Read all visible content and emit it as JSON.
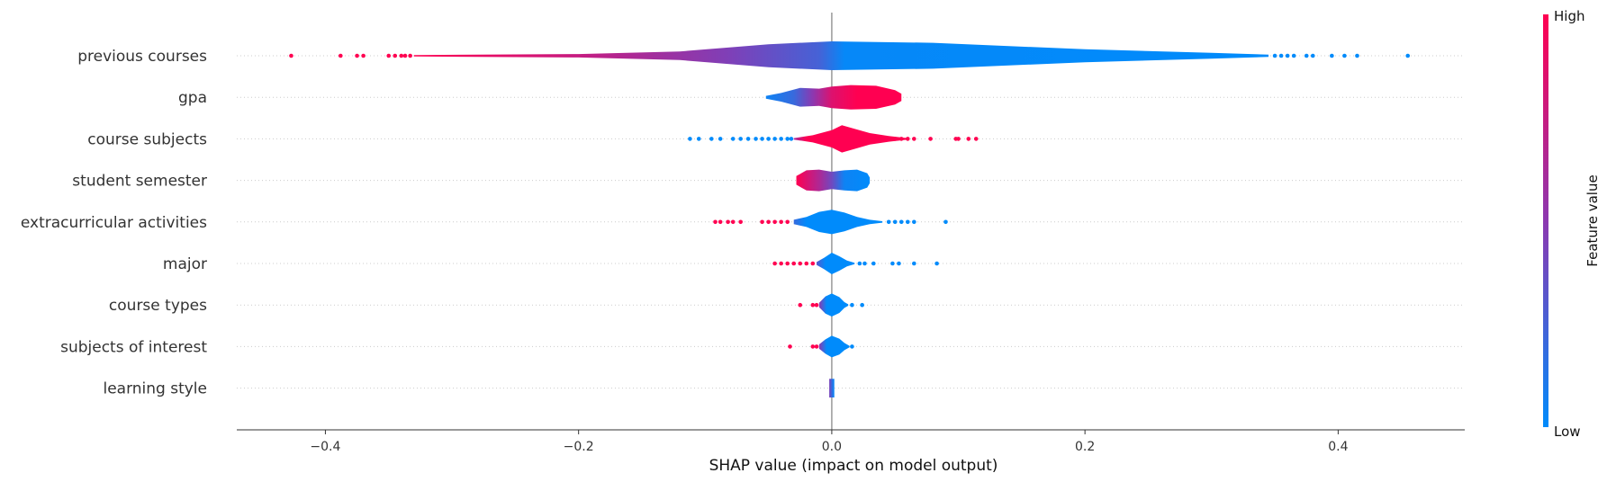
{
  "chart_data": {
    "type": "violin",
    "title": "",
    "xlabel": "SHAP value (impact on model output)",
    "xlim": [
      -0.47,
      0.5
    ],
    "xticks": [
      {
        "value": -0.4,
        "label": "−0.4"
      },
      {
        "value": -0.2,
        "label": "−0.2"
      },
      {
        "value": 0.0,
        "label": "0.0"
      },
      {
        "value": 0.2,
        "label": "0.2"
      },
      {
        "value": 0.4,
        "label": "0.4"
      }
    ],
    "grid": "horizontal dotted",
    "colors": {
      "low": "#008bfb",
      "mid": "#8c38b0",
      "high": "#ff0051"
    },
    "colorbar": {
      "title": "Feature value",
      "high_label": "High",
      "low_label": "Low"
    },
    "features": [
      {
        "name": "previous courses",
        "profile": [
          [
            -0.33,
            0.05
          ],
          [
            -0.2,
            0.12
          ],
          [
            -0.12,
            0.3
          ],
          [
            -0.05,
            0.8
          ],
          [
            0.0,
            1.0
          ],
          [
            0.08,
            0.9
          ],
          [
            0.2,
            0.45
          ],
          [
            0.3,
            0.2
          ],
          [
            0.345,
            0.08
          ]
        ],
        "color_stops": [
          [
            -0.33,
            1.0
          ],
          [
            -0.2,
            0.75
          ],
          [
            -0.08,
            0.45
          ],
          [
            -0.01,
            0.25
          ],
          [
            0.01,
            0.02
          ],
          [
            0.345,
            0.0
          ]
        ],
        "points": [
          {
            "x": -0.427,
            "v": 1.0
          },
          {
            "x": -0.388,
            "v": 1.0
          },
          {
            "x": -0.375,
            "v": 1.0
          },
          {
            "x": -0.37,
            "v": 1.0
          },
          {
            "x": -0.35,
            "v": 1.0
          },
          {
            "x": -0.345,
            "v": 1.0
          },
          {
            "x": -0.34,
            "v": 1.0
          },
          {
            "x": -0.337,
            "v": 1.0
          },
          {
            "x": -0.333,
            "v": 1.0
          },
          {
            "x": 0.35,
            "v": 0.0
          },
          {
            "x": 0.355,
            "v": 0.0
          },
          {
            "x": 0.36,
            "v": 0.0
          },
          {
            "x": 0.365,
            "v": 0.0
          },
          {
            "x": 0.375,
            "v": 0.0
          },
          {
            "x": 0.38,
            "v": 0.0
          },
          {
            "x": 0.395,
            "v": 0.0
          },
          {
            "x": 0.405,
            "v": 0.0
          },
          {
            "x": 0.415,
            "v": 0.0
          },
          {
            "x": 0.455,
            "v": 0.0
          }
        ]
      },
      {
        "name": "gpa",
        "profile": [
          [
            -0.052,
            0.1
          ],
          [
            -0.04,
            0.3
          ],
          [
            -0.025,
            0.65
          ],
          [
            -0.01,
            0.6
          ],
          [
            0.0,
            0.75
          ],
          [
            0.015,
            0.85
          ],
          [
            0.035,
            0.8
          ],
          [
            0.05,
            0.5
          ],
          [
            0.055,
            0.25
          ]
        ],
        "color_stops": [
          [
            -0.052,
            0.05
          ],
          [
            -0.03,
            0.2
          ],
          [
            -0.015,
            0.5
          ],
          [
            0.0,
            0.85
          ],
          [
            0.02,
            1.0
          ],
          [
            0.055,
            1.0
          ]
        ],
        "points": []
      },
      {
        "name": "course subjects",
        "profile": [
          [
            -0.03,
            0.05
          ],
          [
            -0.015,
            0.25
          ],
          [
            0.0,
            0.6
          ],
          [
            0.008,
            0.95
          ],
          [
            0.018,
            0.7
          ],
          [
            0.03,
            0.4
          ],
          [
            0.045,
            0.2
          ],
          [
            0.06,
            0.05
          ]
        ],
        "color_stops": [
          [
            -0.03,
            0.6
          ],
          [
            -0.02,
            1.0
          ],
          [
            0.06,
            1.0
          ]
        ],
        "points": [
          {
            "x": -0.112,
            "v": 0.0
          },
          {
            "x": -0.105,
            "v": 0.0
          },
          {
            "x": -0.095,
            "v": 0.0
          },
          {
            "x": -0.088,
            "v": 0.0
          },
          {
            "x": -0.078,
            "v": 0.0
          },
          {
            "x": -0.072,
            "v": 0.0
          },
          {
            "x": -0.066,
            "v": 0.0
          },
          {
            "x": -0.06,
            "v": 0.0
          },
          {
            "x": -0.055,
            "v": 0.0
          },
          {
            "x": -0.05,
            "v": 0.0
          },
          {
            "x": -0.045,
            "v": 0.0
          },
          {
            "x": -0.04,
            "v": 0.0
          },
          {
            "x": -0.035,
            "v": 0.0
          },
          {
            "x": -0.032,
            "v": 0.0
          },
          {
            "x": 0.05,
            "v": 1.0
          },
          {
            "x": 0.055,
            "v": 1.0
          },
          {
            "x": 0.06,
            "v": 1.0
          },
          {
            "x": 0.065,
            "v": 1.0
          },
          {
            "x": 0.078,
            "v": 1.0
          },
          {
            "x": 0.098,
            "v": 1.0
          },
          {
            "x": 0.1,
            "v": 1.0
          },
          {
            "x": 0.108,
            "v": 1.0
          },
          {
            "x": 0.114,
            "v": 1.0
          }
        ]
      },
      {
        "name": "student semester",
        "profile": [
          [
            -0.028,
            0.3
          ],
          [
            -0.02,
            0.7
          ],
          [
            -0.01,
            0.75
          ],
          [
            0.0,
            0.6
          ],
          [
            0.01,
            0.7
          ],
          [
            0.02,
            0.75
          ],
          [
            0.028,
            0.5
          ],
          [
            0.03,
            0.2
          ]
        ],
        "color_stops": [
          [
            -0.028,
            1.0
          ],
          [
            -0.01,
            0.65
          ],
          [
            0.0,
            0.4
          ],
          [
            0.01,
            0.05
          ],
          [
            0.03,
            0.0
          ]
        ],
        "points": []
      },
      {
        "name": "extracurricular activities",
        "profile": [
          [
            -0.03,
            0.15
          ],
          [
            -0.02,
            0.35
          ],
          [
            -0.01,
            0.7
          ],
          [
            0.0,
            0.85
          ],
          [
            0.01,
            0.65
          ],
          [
            0.02,
            0.35
          ],
          [
            0.03,
            0.15
          ],
          [
            0.04,
            0.05
          ]
        ],
        "color_stops": [
          [
            -0.03,
            0.2
          ],
          [
            -0.02,
            0.0
          ],
          [
            0.04,
            0.0
          ]
        ],
        "points": [
          {
            "x": -0.092,
            "v": 1.0
          },
          {
            "x": -0.088,
            "v": 1.0
          },
          {
            "x": -0.082,
            "v": 1.0
          },
          {
            "x": -0.078,
            "v": 1.0
          },
          {
            "x": -0.072,
            "v": 1.0
          },
          {
            "x": -0.055,
            "v": 1.0
          },
          {
            "x": -0.05,
            "v": 1.0
          },
          {
            "x": -0.045,
            "v": 1.0
          },
          {
            "x": -0.04,
            "v": 1.0
          },
          {
            "x": -0.035,
            "v": 1.0
          },
          {
            "x": 0.045,
            "v": 0.0
          },
          {
            "x": 0.05,
            "v": 0.0
          },
          {
            "x": 0.055,
            "v": 0.0
          },
          {
            "x": 0.06,
            "v": 0.0
          },
          {
            "x": 0.065,
            "v": 0.0
          },
          {
            "x": 0.09,
            "v": 0.0
          }
        ]
      },
      {
        "name": "major",
        "profile": [
          [
            -0.012,
            0.1
          ],
          [
            -0.006,
            0.4
          ],
          [
            0.0,
            0.75
          ],
          [
            0.006,
            0.5
          ],
          [
            0.012,
            0.2
          ],
          [
            0.018,
            0.05
          ]
        ],
        "color_stops": [
          [
            -0.012,
            0.3
          ],
          [
            -0.005,
            0.0
          ],
          [
            0.018,
            0.0
          ]
        ],
        "points": [
          {
            "x": -0.045,
            "v": 1.0
          },
          {
            "x": -0.04,
            "v": 1.0
          },
          {
            "x": -0.035,
            "v": 1.0
          },
          {
            "x": -0.03,
            "v": 1.0
          },
          {
            "x": -0.025,
            "v": 1.0
          },
          {
            "x": -0.02,
            "v": 1.0
          },
          {
            "x": -0.015,
            "v": 1.0
          },
          {
            "x": 0.022,
            "v": 0.0
          },
          {
            "x": 0.026,
            "v": 0.0
          },
          {
            "x": 0.033,
            "v": 0.0
          },
          {
            "x": 0.048,
            "v": 0.0
          },
          {
            "x": 0.053,
            "v": 0.0
          },
          {
            "x": 0.065,
            "v": 0.0
          },
          {
            "x": 0.083,
            "v": 0.0
          }
        ]
      },
      {
        "name": "course types",
        "profile": [
          [
            -0.01,
            0.15
          ],
          [
            -0.005,
            0.6
          ],
          [
            0.0,
            0.8
          ],
          [
            0.006,
            0.55
          ],
          [
            0.01,
            0.2
          ],
          [
            0.013,
            0.05
          ]
        ],
        "color_stops": [
          [
            -0.01,
            0.5
          ],
          [
            -0.004,
            0.0
          ],
          [
            0.013,
            0.0
          ]
        ],
        "points": [
          {
            "x": -0.025,
            "v": 1.0
          },
          {
            "x": -0.015,
            "v": 1.0
          },
          {
            "x": -0.012,
            "v": 1.0
          },
          {
            "x": 0.016,
            "v": 0.0
          },
          {
            "x": 0.024,
            "v": 0.0
          }
        ]
      },
      {
        "name": "subjects of interest",
        "profile": [
          [
            -0.01,
            0.15
          ],
          [
            -0.005,
            0.5
          ],
          [
            0.0,
            0.75
          ],
          [
            0.006,
            0.55
          ],
          [
            0.01,
            0.25
          ],
          [
            0.014,
            0.05
          ]
        ],
        "color_stops": [
          [
            -0.01,
            0.5
          ],
          [
            -0.004,
            0.0
          ],
          [
            0.014,
            0.0
          ]
        ],
        "points": [
          {
            "x": -0.033,
            "v": 1.0
          },
          {
            "x": -0.015,
            "v": 1.0
          },
          {
            "x": -0.012,
            "v": 1.0
          },
          {
            "x": 0.016,
            "v": 0.0
          }
        ]
      },
      {
        "name": "learning style",
        "profile": [
          [
            -0.002,
            0.65
          ],
          [
            0.0,
            0.65
          ],
          [
            0.002,
            0.65
          ]
        ],
        "color_stops": [
          [
            -0.002,
            0.45
          ],
          [
            0.0,
            0.2
          ],
          [
            0.002,
            0.0
          ]
        ],
        "points": []
      }
    ]
  }
}
